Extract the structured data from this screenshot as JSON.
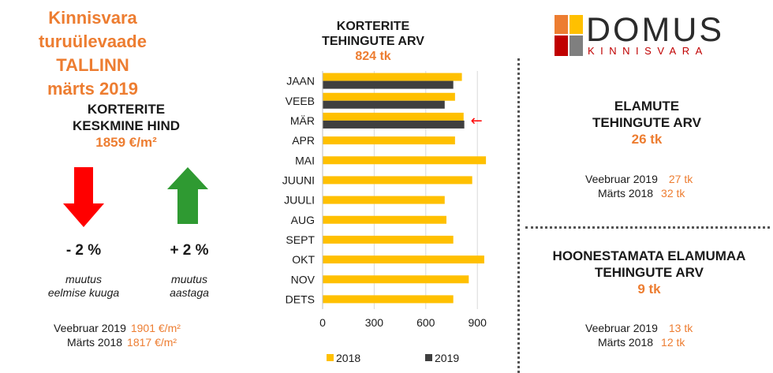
{
  "header": {
    "title_line1": "Kinnisvara turuülevaade",
    "title_line2": "TALLINN",
    "title_line3": "märts 2019"
  },
  "avg_price": {
    "label_line1": "KORTERITE",
    "label_line2": "KESKMINE HIND",
    "value": "1859 €/m²",
    "monthly_change": "- 2 %",
    "monthly_caption_line1": "muutus",
    "monthly_caption_line2": "eelmise kuuga",
    "yearly_change": "+ 2 %",
    "yearly_caption_line1": "muutus",
    "yearly_caption_line2": "aastaga",
    "prev_month_label": "Veebruar 2019",
    "prev_month_value": "1901 €/m²",
    "prev_year_label": "Märts 2018",
    "prev_year_value": "1817 €/m²"
  },
  "arrows": {
    "down_color": "#ff0000",
    "up_color": "#2f9a32"
  },
  "chart_title": {
    "line1": "KORTERITE",
    "line2": "TEHINGUTE ARV",
    "value": "824 tk"
  },
  "chart_data": {
    "type": "bar",
    "orientation": "horizontal",
    "categories": [
      "JAAN",
      "VEEB",
      "MÄR",
      "APR",
      "MAI",
      "JUUNI",
      "JUULI",
      "AUG",
      "SEPT",
      "OKT",
      "NOV",
      "DETS"
    ],
    "series": [
      {
        "name": "2018",
        "color": "#ffc000",
        "values": [
          810,
          770,
          820,
          770,
          950,
          870,
          710,
          720,
          760,
          940,
          850,
          760
        ]
      },
      {
        "name": "2019",
        "color": "#3f3f3f",
        "values": [
          760,
          710,
          824,
          null,
          null,
          null,
          null,
          null,
          null,
          null,
          null,
          null
        ]
      }
    ],
    "xlim": [
      0,
      1000
    ],
    "xticks": [
      0,
      300,
      600,
      900
    ],
    "grid": "vertical",
    "legend_position": "bottom",
    "annotation": {
      "category": "MÄR",
      "symbol": "←",
      "color": "#ff0000"
    }
  },
  "houses": {
    "label_line1": "ELAMUTE",
    "label_line2": "TEHINGUTE ARV",
    "value": "26 tk",
    "prev_month_label": "Veebruar 2019",
    "prev_month_value": "27 tk",
    "prev_year_label": "Märts 2018",
    "prev_year_value": "32 tk"
  },
  "land": {
    "label_line1": "HOONESTAMATA ELAMUMAA",
    "label_line2": "TEHINGUTE ARV",
    "value": "9 tk",
    "prev_month_label": "Veebruar 2019",
    "prev_month_value": "13 tk",
    "prev_year_label": "Märts 2018",
    "prev_year_value": "12 tk"
  },
  "logo": {
    "word": "DOMUS",
    "subtitle": "KINNISVARA",
    "colors": [
      "#ed7d31",
      "#ffc000",
      "#c00000",
      "#7f7f7f"
    ]
  }
}
